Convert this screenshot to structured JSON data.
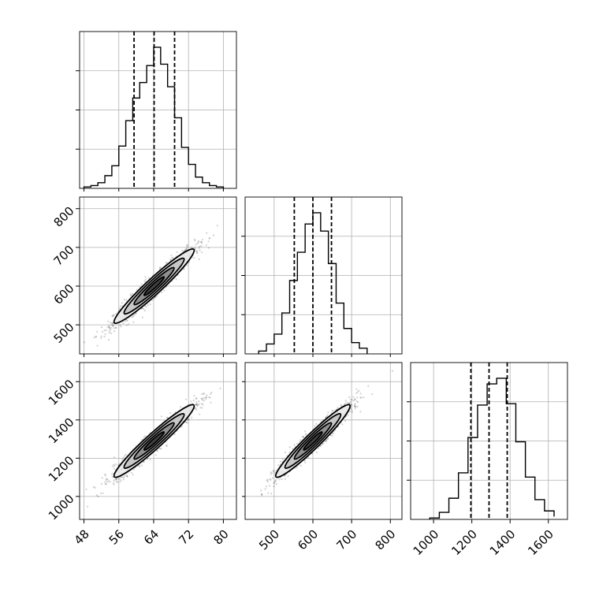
{
  "chart_data": {
    "type": "corner",
    "grid": true,
    "colors": {
      "line": "#000000",
      "grid": "#b0b0b0",
      "points": "#333333",
      "level_fills": [
        "#ececec",
        "#c4c4c4",
        "#8a8a8a",
        "#3a3a3a"
      ]
    },
    "parameters": [
      {
        "id": "p0",
        "range": [
          47,
          83
        ],
        "ticks": [
          48,
          56,
          64,
          72,
          80
        ],
        "tick_labels": [
          "48",
          "56",
          "64",
          "72",
          "80"
        ],
        "quantiles": [
          59.5,
          64.1,
          68.8
        ]
      },
      {
        "id": "p1",
        "range": [
          425,
          830
        ],
        "ticks": [
          500,
          600,
          700,
          800
        ],
        "tick_labels": [
          "500",
          "600",
          "700",
          "800"
        ],
        "quantiles": [
          552,
          600,
          648
        ]
      },
      {
        "id": "p2",
        "range": [
          880,
          1700
        ],
        "ticks": [
          1000,
          1200,
          1400,
          1600
        ],
        "tick_labels": [
          "1000",
          "1200",
          "1400",
          "1600"
        ],
        "quantiles": [
          1195,
          1290,
          1385
        ]
      }
    ],
    "histograms": [
      {
        "param": "p0",
        "bin_edges": [
          48.0,
          49.6,
          51.2,
          52.8,
          54.4,
          56.0,
          57.6,
          59.2,
          60.8,
          62.4,
          64.0,
          65.6,
          67.2,
          68.8,
          70.4,
          72.0,
          73.6,
          75.2,
          76.8,
          78.4,
          80.0
        ],
        "relative_heights": [
          0.01,
          0.02,
          0.04,
          0.09,
          0.16,
          0.3,
          0.48,
          0.64,
          0.75,
          0.87,
          1.0,
          0.88,
          0.72,
          0.5,
          0.29,
          0.17,
          0.08,
          0.04,
          0.02,
          0.01
        ]
      },
      {
        "param": "p1",
        "bin_edges": [
          460,
          480,
          500,
          520,
          540,
          560,
          580,
          600,
          620,
          640,
          660,
          680,
          700,
          720,
          740
        ],
        "relative_heights": [
          0.02,
          0.07,
          0.14,
          0.29,
          0.52,
          0.72,
          0.92,
          1.0,
          0.87,
          0.64,
          0.36,
          0.18,
          0.08,
          0.04
        ]
      },
      {
        "param": "p2",
        "bin_edges": [
          980,
          1030,
          1080,
          1130,
          1180,
          1230,
          1280,
          1330,
          1380,
          1430,
          1480,
          1530,
          1580,
          1630
        ],
        "relative_heights": [
          0.01,
          0.05,
          0.15,
          0.33,
          0.58,
          0.81,
          0.96,
          1.0,
          0.82,
          0.55,
          0.3,
          0.14,
          0.06,
          0.02
        ]
      }
    ],
    "pairs": [
      {
        "x": "p0",
        "y": "p1",
        "center": [
          64.1,
          600
        ],
        "sigma": [
          4.6,
          48
        ],
        "correlation": 0.96,
        "contour_levels_sigma": [
          0.5,
          1.0,
          1.5,
          2.0
        ]
      },
      {
        "x": "p0",
        "y": "p2",
        "center": [
          64.1,
          1290
        ],
        "sigma": [
          4.6,
          95
        ],
        "correlation": 0.96,
        "contour_levels_sigma": [
          0.5,
          1.0,
          1.5,
          2.0
        ]
      },
      {
        "x": "p1",
        "y": "p2",
        "center": [
          600,
          1290
        ],
        "sigma": [
          48,
          95
        ],
        "correlation": 0.96,
        "contour_levels_sigma": [
          0.5,
          1.0,
          1.5,
          2.0
        ]
      }
    ]
  }
}
